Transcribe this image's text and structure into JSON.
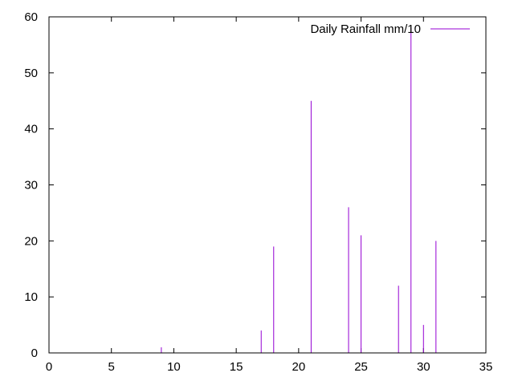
{
  "chart_data": {
    "type": "impulses",
    "legend_placement": "top-right",
    "grid": false,
    "xlim": [
      0,
      35
    ],
    "ylim": [
      0,
      60
    ],
    "xticks": [
      0,
      5,
      10,
      15,
      20,
      25,
      30,
      35
    ],
    "yticks": [
      0,
      10,
      20,
      30,
      40,
      50,
      60
    ],
    "xtick_labels": [
      "0",
      "5",
      "10",
      "15",
      "20",
      "25",
      "30",
      "35"
    ],
    "ytick_labels": [
      "0",
      "10",
      "20",
      "30",
      "40",
      "50",
      "60"
    ],
    "series": [
      {
        "name": "Daily Rainfall mm/10",
        "color": "#9400d3",
        "x": [
          9,
          17,
          18,
          21,
          24,
          25,
          28,
          29,
          30,
          31
        ],
        "y": [
          1,
          4,
          19,
          45,
          26,
          21,
          12,
          58,
          5,
          20
        ]
      }
    ]
  }
}
